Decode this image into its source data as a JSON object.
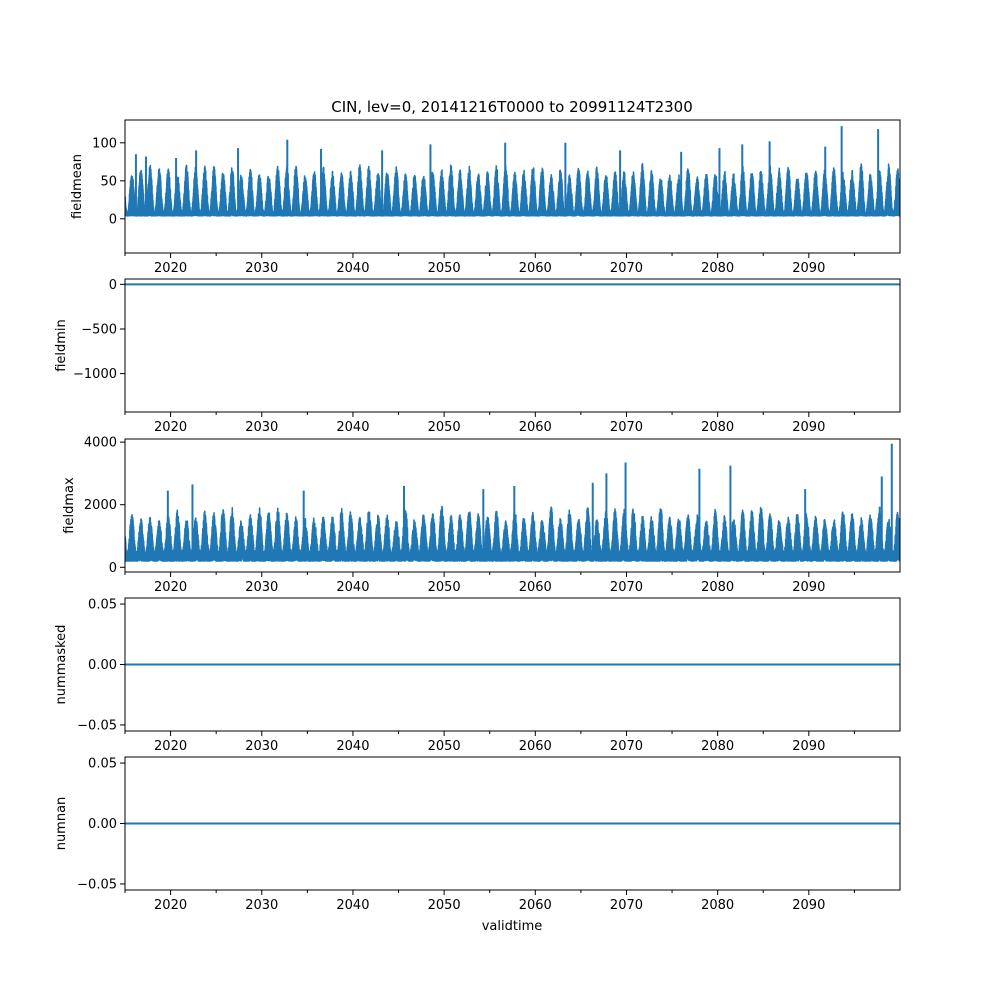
{
  "chart_data": {
    "type": "line",
    "title": "CIN, lev=0, 20141216T0000 to 20991124T2300",
    "xlabel": "validtime",
    "xlim": [
      2015.0,
      2100.0
    ],
    "x_ticks": [
      "2020",
      "2030",
      "2040",
      "2050",
      "2060",
      "2070",
      "2080",
      "2090"
    ],
    "x_tick_values": [
      2020,
      2030,
      2040,
      2050,
      2060,
      2070,
      2080,
      2090
    ],
    "color": "#1f77b4",
    "grid": false,
    "panels": [
      {
        "name": "fieldmean",
        "ylabel": "fieldmean",
        "ylim": [
          -45,
          130
        ],
        "yticks": [
          0,
          50,
          100
        ],
        "ytick_labels": [
          "0",
          "50",
          "100"
        ],
        "style": "seasonal",
        "series": {
          "base_low": 4,
          "trough_high": 8,
          "peak_typical": 70,
          "peak_max": 123,
          "spike_years": [
            2016.2,
            2017.3,
            2020.6,
            2022.8,
            2027.4,
            2032.8,
            2036.5,
            2043.2,
            2048.5,
            2056.7,
            2063.3,
            2069.3,
            2076.0,
            2080.2,
            2082.7,
            2085.7,
            2091.8,
            2093.6,
            2097.6
          ],
          "spike_values": [
            85,
            82,
            80,
            90,
            93,
            104,
            92,
            90,
            98,
            100,
            100,
            90,
            88,
            93,
            98,
            102,
            95,
            122,
            118
          ]
        }
      },
      {
        "name": "fieldmin",
        "ylabel": "fieldmin",
        "ylim": [
          -1430,
          60
        ],
        "yticks": [
          0,
          -500,
          -1000
        ],
        "ytick_labels": [
          "0",
          "−500",
          "−1000"
        ],
        "style": "flat",
        "series": {
          "value": 0
        }
      },
      {
        "name": "fieldmax",
        "ylabel": "fieldmax",
        "ylim": [
          -150,
          4100
        ],
        "yticks": [
          0,
          2000,
          4000
        ],
        "ytick_labels": [
          "0",
          "2000",
          "4000"
        ],
        "style": "seasonal",
        "series": {
          "base_low": 200,
          "trough_high": 500,
          "peak_typical": 1900,
          "peak_max": 3950,
          "spike_years": [
            2019.7,
            2022.4,
            2034.6,
            2045.6,
            2054.3,
            2057.7,
            2066.3,
            2067.8,
            2069.9,
            2078.0,
            2081.4,
            2089.6,
            2098.0,
            2099.1
          ],
          "spike_values": [
            2450,
            2650,
            2450,
            2600,
            2500,
            2600,
            2700,
            3000,
            3350,
            3150,
            3250,
            2500,
            2900,
            3950
          ]
        }
      },
      {
        "name": "nummasked",
        "ylabel": "nummasked",
        "ylim": [
          -0.055,
          0.055
        ],
        "yticks": [
          0.05,
          0.0,
          -0.05
        ],
        "ytick_labels": [
          "0.05",
          "0.00",
          "−0.05"
        ],
        "style": "flat",
        "series": {
          "value": 0.0
        }
      },
      {
        "name": "numnan",
        "ylabel": "numnan",
        "ylim": [
          -0.055,
          0.055
        ],
        "yticks": [
          0.05,
          0.0,
          -0.05
        ],
        "ytick_labels": [
          "0.05",
          "0.00",
          "−0.05"
        ],
        "style": "flat",
        "series": {
          "value": 0.0
        }
      }
    ]
  }
}
